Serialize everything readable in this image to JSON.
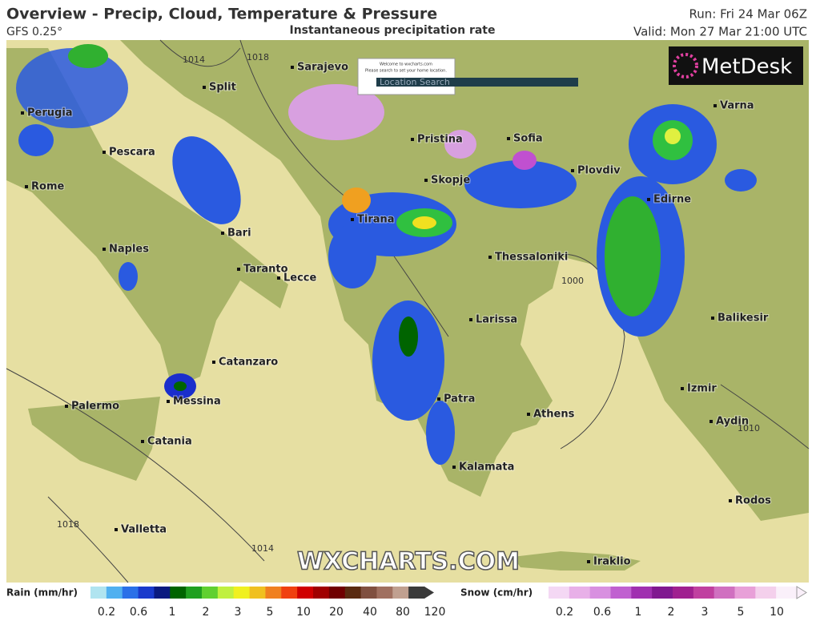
{
  "header": {
    "title": "Overview - Precip, Cloud, Temperature & Pressure",
    "model": "GFS 0.25°",
    "subtitle": "Instantaneous precipitation rate",
    "run": "Run: Fri 24 Mar 06Z",
    "valid": "Valid: Mon 27 Mar 21:00 UTC"
  },
  "map": {
    "cities": [
      "Sarajevo",
      "Split",
      "Perugia",
      "Pescara",
      "Pristina",
      "Sofia",
      "Varna",
      "Rome",
      "Skopje",
      "Plovdiv",
      "Edirne",
      "Tirana",
      "Bari",
      "Naples",
      "Thessaloniki",
      "Taranto",
      "Lecce",
      "Larissa",
      "Balikesir",
      "Catanzaro",
      "Izmir",
      "Palermo",
      "Messina",
      "Patra",
      "Athens",
      "Aydin",
      "Catania",
      "Kalamata",
      "Rodos",
      "Valletta",
      "Iraklio"
    ],
    "isobars": [
      1014,
      1018,
      1000,
      1018,
      1014,
      1010
    ],
    "watermark": "WXCHARTS.COM",
    "logo": "MetDesk"
  },
  "popup": {
    "line1": "Welcome to wxcharts.com",
    "line2": "Please search to set your home location.",
    "search": "Location Search"
  },
  "legend": {
    "rain_title": "Rain (mm/hr)",
    "rain_ticks": [
      0.2,
      0.6,
      1,
      2,
      3,
      5,
      10,
      20,
      40,
      80,
      120
    ],
    "snow_title": "Snow (cm/hr)",
    "snow_ticks": [
      0.2,
      0.6,
      1,
      2,
      3,
      5,
      10
    ]
  }
}
